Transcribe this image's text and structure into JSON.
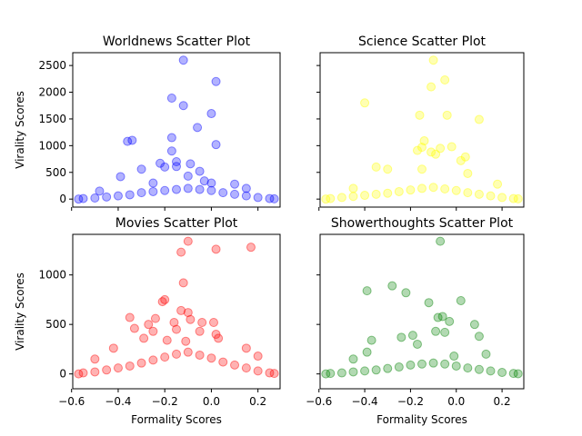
{
  "chart_data": [
    {
      "type": "scatter",
      "title": "Worldnews Scatter Plot",
      "xlabel": "",
      "ylabel": "Virality Scores",
      "color": "#0000ff",
      "xlim": [
        -0.595,
        0.295
      ],
      "ylim": [
        -150,
        2740
      ],
      "xticks": [
        -0.6,
        -0.4,
        -0.2,
        0.0,
        0.2
      ],
      "xtick_labels": [],
      "yticks": [
        0,
        500,
        1000,
        1500,
        2000,
        2500
      ],
      "ytick_labels": [
        "0",
        "500",
        "1000",
        "1500",
        "2000",
        "2500"
      ],
      "points": [
        [
          -0.12,
          2600
        ],
        [
          0.02,
          2200
        ],
        [
          -0.17,
          1890
        ],
        [
          -0.12,
          1750
        ],
        [
          0.0,
          1600
        ],
        [
          -0.06,
          1340
        ],
        [
          -0.17,
          1150
        ],
        [
          -0.34,
          1100
        ],
        [
          -0.36,
          1080
        ],
        [
          0.02,
          1020
        ],
        [
          -0.17,
          900
        ],
        [
          -0.15,
          700
        ],
        [
          -0.22,
          670
        ],
        [
          -0.09,
          660
        ],
        [
          -0.15,
          610
        ],
        [
          -0.2,
          600
        ],
        [
          -0.3,
          560
        ],
        [
          -0.05,
          520
        ],
        [
          -0.39,
          420
        ],
        [
          -0.1,
          430
        ],
        [
          -0.03,
          340
        ],
        [
          0.0,
          300
        ],
        [
          -0.25,
          300
        ],
        [
          0.1,
          280
        ],
        [
          -0.48,
          150
        ],
        [
          0.15,
          200
        ],
        [
          -0.55,
          10
        ],
        [
          -0.5,
          20
        ],
        [
          -0.45,
          40
        ],
        [
          -0.4,
          60
        ],
        [
          -0.35,
          80
        ],
        [
          -0.3,
          120
        ],
        [
          -0.25,
          140
        ],
        [
          -0.2,
          160
        ],
        [
          -0.15,
          180
        ],
        [
          -0.1,
          200
        ],
        [
          -0.05,
          180
        ],
        [
          0.0,
          160
        ],
        [
          0.05,
          120
        ],
        [
          0.1,
          90
        ],
        [
          0.15,
          60
        ],
        [
          0.2,
          30
        ],
        [
          0.25,
          10
        ],
        [
          0.27,
          5
        ],
        [
          -0.57,
          0
        ]
      ]
    },
    {
      "type": "scatter",
      "title": "Science Scatter Plot",
      "xlabel": "",
      "ylabel": "",
      "color": "#ffff00",
      "xlim": [
        -0.595,
        0.295
      ],
      "ylim": [
        -150,
        2740
      ],
      "xticks": [
        -0.6,
        -0.4,
        -0.2,
        0.0,
        0.2
      ],
      "xtick_labels": [],
      "yticks": [
        0,
        500,
        1000,
        1500,
        2000,
        2500
      ],
      "ytick_labels": [],
      "points": [
        [
          -0.1,
          2600
        ],
        [
          -0.05,
          2230
        ],
        [
          -0.11,
          2100
        ],
        [
          -0.4,
          1800
        ],
        [
          -0.16,
          1570
        ],
        [
          -0.04,
          1570
        ],
        [
          0.1,
          1490
        ],
        [
          -0.14,
          1090
        ],
        [
          -0.15,
          970
        ],
        [
          -0.02,
          980
        ],
        [
          -0.17,
          910
        ],
        [
          -0.07,
          950
        ],
        [
          -0.11,
          880
        ],
        [
          -0.09,
          840
        ],
        [
          0.04,
          790
        ],
        [
          0.02,
          720
        ],
        [
          -0.35,
          600
        ],
        [
          -0.3,
          560
        ],
        [
          -0.15,
          560
        ],
        [
          0.05,
          480
        ],
        [
          0.18,
          280
        ],
        [
          -0.45,
          200
        ],
        [
          -0.55,
          10
        ],
        [
          -0.5,
          30
        ],
        [
          -0.45,
          50
        ],
        [
          -0.4,
          70
        ],
        [
          -0.35,
          90
        ],
        [
          -0.3,
          110
        ],
        [
          -0.25,
          140
        ],
        [
          -0.2,
          170
        ],
        [
          -0.15,
          200
        ],
        [
          -0.1,
          220
        ],
        [
          -0.05,
          190
        ],
        [
          0.0,
          160
        ],
        [
          0.05,
          120
        ],
        [
          0.1,
          90
        ],
        [
          0.15,
          60
        ],
        [
          0.2,
          30
        ],
        [
          0.25,
          10
        ],
        [
          0.27,
          5
        ],
        [
          -0.57,
          0
        ]
      ]
    },
    {
      "type": "scatter",
      "title": "Movies Scatter Plot",
      "xlabel": "Formality Scores",
      "ylabel": "Virality Scores",
      "color": "#ff0000",
      "xlim": [
        -0.595,
        0.295
      ],
      "ylim": [
        -150,
        1410
      ],
      "xticks": [
        -0.6,
        -0.4,
        -0.2,
        0.0,
        0.2
      ],
      "xtick_labels": [
        "−0.6",
        "−0.4",
        "−0.2",
        "0.0",
        "0.2"
      ],
      "yticks": [
        0,
        500,
        1000
      ],
      "ytick_labels": [
        "0",
        "500",
        "1000"
      ],
      "points": [
        [
          -0.1,
          1340
        ],
        [
          0.17,
          1280
        ],
        [
          0.02,
          1260
        ],
        [
          -0.13,
          1230
        ],
        [
          -0.12,
          920
        ],
        [
          -0.2,
          750
        ],
        [
          -0.21,
          730
        ],
        [
          -0.13,
          640
        ],
        [
          -0.1,
          620
        ],
        [
          -0.09,
          550
        ],
        [
          -0.35,
          570
        ],
        [
          -0.24,
          560
        ],
        [
          -0.16,
          520
        ],
        [
          -0.04,
          520
        ],
        [
          0.01,
          520
        ],
        [
          -0.33,
          460
        ],
        [
          -0.27,
          500
        ],
        [
          -0.25,
          430
        ],
        [
          -0.15,
          450
        ],
        [
          -0.05,
          430
        ],
        [
          0.02,
          400
        ],
        [
          -0.29,
          360
        ],
        [
          -0.19,
          340
        ],
        [
          -0.11,
          330
        ],
        [
          0.03,
          360
        ],
        [
          -0.42,
          260
        ],
        [
          0.15,
          260
        ],
        [
          -0.5,
          150
        ],
        [
          0.2,
          180
        ],
        [
          -0.55,
          10
        ],
        [
          -0.5,
          20
        ],
        [
          -0.45,
          40
        ],
        [
          -0.4,
          60
        ],
        [
          -0.35,
          80
        ],
        [
          -0.3,
          110
        ],
        [
          -0.25,
          140
        ],
        [
          -0.2,
          170
        ],
        [
          -0.15,
          200
        ],
        [
          -0.1,
          220
        ],
        [
          -0.05,
          190
        ],
        [
          0.0,
          160
        ],
        [
          0.05,
          120
        ],
        [
          0.1,
          90
        ],
        [
          0.15,
          60
        ],
        [
          0.2,
          30
        ],
        [
          0.25,
          10
        ],
        [
          0.27,
          5
        ],
        [
          -0.57,
          0
        ]
      ]
    },
    {
      "type": "scatter",
      "title": "Showerthoughts Scatter Plot",
      "xlabel": "Formality Scores",
      "ylabel": "",
      "color": "#008000",
      "xlim": [
        -0.595,
        0.295
      ],
      "ylim": [
        -150,
        1410
      ],
      "xticks": [
        -0.6,
        -0.4,
        -0.2,
        0.0,
        0.2
      ],
      "xtick_labels": [
        "−0.6",
        "−0.4",
        "−0.2",
        "0.0",
        "0.2"
      ],
      "yticks": [
        0,
        500,
        1000
      ],
      "ytick_labels": [],
      "points": [
        [
          -0.07,
          1340
        ],
        [
          -0.28,
          890
        ],
        [
          -0.39,
          840
        ],
        [
          -0.22,
          820
        ],
        [
          0.02,
          740
        ],
        [
          -0.12,
          720
        ],
        [
          -0.06,
          580
        ],
        [
          -0.08,
          570
        ],
        [
          -0.03,
          530
        ],
        [
          0.08,
          500
        ],
        [
          -0.05,
          420
        ],
        [
          -0.09,
          430
        ],
        [
          -0.19,
          390
        ],
        [
          -0.24,
          370
        ],
        [
          -0.37,
          340
        ],
        [
          0.1,
          380
        ],
        [
          -0.39,
          220
        ],
        [
          -0.17,
          300
        ],
        [
          -0.01,
          180
        ],
        [
          0.13,
          200
        ],
        [
          -0.45,
          150
        ],
        [
          -0.55,
          5
        ],
        [
          -0.5,
          10
        ],
        [
          -0.45,
          20
        ],
        [
          -0.4,
          30
        ],
        [
          -0.35,
          40
        ],
        [
          -0.3,
          55
        ],
        [
          -0.25,
          70
        ],
        [
          -0.2,
          90
        ],
        [
          -0.15,
          100
        ],
        [
          -0.1,
          110
        ],
        [
          -0.05,
          100
        ],
        [
          0.0,
          80
        ],
        [
          0.05,
          60
        ],
        [
          0.1,
          45
        ],
        [
          0.15,
          30
        ],
        [
          0.2,
          15
        ],
        [
          0.25,
          5
        ],
        [
          0.27,
          2
        ],
        [
          -0.57,
          0
        ]
      ]
    }
  ]
}
